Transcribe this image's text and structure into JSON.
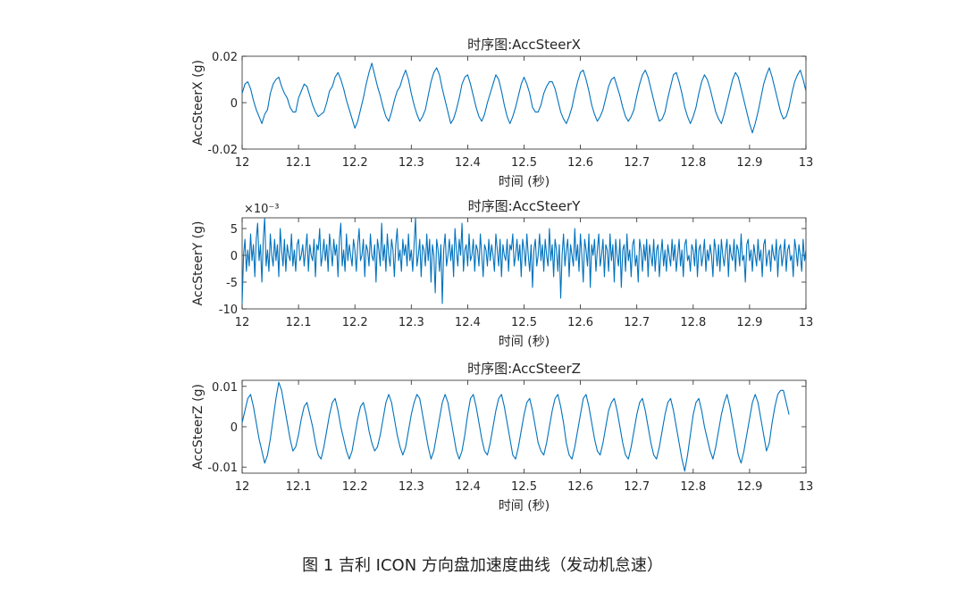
{
  "figure_caption": "图 1  吉利 ICON 方向盘加速度曲线（发动机怠速）",
  "chart_data": [
    {
      "type": "line",
      "title": "时序图:AccSteerX",
      "xlabel": "时间 (秒)",
      "ylabel": "AccSteerX (g)",
      "xlim": [
        12,
        13
      ],
      "ylim": [
        -0.02,
        0.02
      ],
      "x_ticks": [
        12,
        12.1,
        12.2,
        12.3,
        12.4,
        12.5,
        12.6,
        12.7,
        12.8,
        12.9,
        13
      ],
      "x_tick_labels": [
        "12",
        "12.1",
        "12.2",
        "12.3",
        "12.4",
        "12.5",
        "12.6",
        "12.7",
        "12.8",
        "12.9",
        "13"
      ],
      "y_ticks": [
        -0.02,
        0,
        0.02
      ],
      "y_tick_labels": [
        "-0.02",
        "0",
        "0.02"
      ],
      "exponent_label": "",
      "color": "#0072BD",
      "x_step": 0.005,
      "x_start": 12,
      "series": [
        {
          "values": [
            0.004,
            0.008,
            0.009,
            0.006,
            0.001,
            -0.003,
            -0.006,
            -0.009,
            -0.005,
            -0.003,
            0.004,
            0.008,
            0.01,
            0.011,
            0.007,
            0.004,
            0.002,
            -0.002,
            -0.004,
            -0.004,
            0.002,
            0.005,
            0.008,
            0.007,
            0.003,
            -0.001,
            -0.004,
            -0.006,
            -0.005,
            -0.004,
            0.0,
            0.005,
            0.007,
            0.011,
            0.013,
            0.01,
            0.006,
            0.001,
            -0.003,
            -0.007,
            -0.011,
            -0.008,
            -0.003,
            0.002,
            0.008,
            0.013,
            0.017,
            0.012,
            0.007,
            0.003,
            -0.002,
            -0.006,
            -0.008,
            -0.004,
            0.001,
            0.005,
            0.007,
            0.011,
            0.014,
            0.01,
            0.004,
            -0.001,
            -0.005,
            -0.008,
            -0.006,
            -0.003,
            0.003,
            0.009,
            0.013,
            0.015,
            0.012,
            0.006,
            0.001,
            -0.004,
            -0.009,
            -0.007,
            -0.003,
            0.002,
            0.008,
            0.011,
            0.012,
            0.008,
            0.003,
            -0.002,
            -0.006,
            -0.008,
            -0.005,
            0.0,
            0.004,
            0.008,
            0.012,
            0.01,
            0.005,
            -0.001,
            -0.006,
            -0.009,
            -0.006,
            -0.002,
            0.003,
            0.008,
            0.011,
            0.008,
            0.004,
            -0.002,
            -0.004,
            -0.004,
            -0.001,
            0.004,
            0.007,
            0.009,
            0.009,
            0.006,
            0.001,
            -0.004,
            -0.007,
            -0.009,
            -0.006,
            -0.002,
            0.004,
            0.009,
            0.013,
            0.014,
            0.01,
            0.005,
            -0.001,
            -0.005,
            -0.008,
            -0.006,
            -0.003,
            0.002,
            0.007,
            0.01,
            0.011,
            0.007,
            0.003,
            -0.002,
            -0.006,
            -0.008,
            -0.006,
            -0.003,
            0.003,
            0.008,
            0.012,
            0.014,
            0.011,
            0.006,
            0.001,
            -0.004,
            -0.008,
            -0.007,
            -0.004,
            0.002,
            0.007,
            0.012,
            0.013,
            0.009,
            0.004,
            -0.002,
            -0.006,
            -0.009,
            -0.006,
            -0.002,
            0.004,
            0.009,
            0.012,
            0.01,
            0.006,
            0.001,
            -0.004,
            -0.007,
            -0.009,
            -0.005,
            0.0,
            0.005,
            0.01,
            0.013,
            0.011,
            0.006,
            0.001,
            -0.004,
            -0.009,
            -0.013,
            -0.009,
            -0.004,
            0.002,
            0.008,
            0.012,
            0.015,
            0.011,
            0.006,
            0.001,
            -0.004,
            -0.007,
            -0.006,
            -0.002,
            0.004,
            0.009,
            0.012,
            0.014,
            0.01,
            0.005,
            -0.001,
            -0.005,
            -0.008
          ]
        }
      ]
    },
    {
      "type": "line",
      "title": "时序图:AccSteerY",
      "xlabel": "时间 (秒)",
      "ylabel": "AccSteerY (g)",
      "xlim": [
        12,
        13
      ],
      "ylim": [
        -0.01,
        0.007
      ],
      "x_ticks": [
        12,
        12.1,
        12.2,
        12.3,
        12.4,
        12.5,
        12.6,
        12.7,
        12.8,
        12.9,
        13
      ],
      "x_tick_labels": [
        "12",
        "12.1",
        "12.2",
        "12.3",
        "12.4",
        "12.5",
        "12.6",
        "12.7",
        "12.8",
        "12.9",
        "13"
      ],
      "y_ticks": [
        -0.01,
        -0.005,
        0,
        0.005
      ],
      "y_tick_labels": [
        "-10",
        "-5",
        "0",
        "5"
      ],
      "exponent_label": "×10⁻³",
      "color": "#0072BD",
      "x_step": 0.0025,
      "x_start": 12,
      "series": [
        {
          "values": [
            -0.009,
            0.0,
            0.003,
            -0.003,
            0.001,
            -0.002,
            0.004,
            -0.001,
            0.002,
            -0.004,
            0.003,
            0.006,
            -0.001,
            0.002,
            -0.005,
            0.003,
            0.007,
            -0.002,
            0.001,
            -0.003,
            0.004,
            0.0,
            -0.002,
            0.003,
            -0.001,
            0.002,
            -0.004,
            0.005,
            0.001,
            -0.002,
            0.003,
            -0.003,
            0.002,
            0.0,
            -0.001,
            0.004,
            -0.002,
            0.001,
            -0.003,
            0.002,
            0.003,
            -0.001,
            0.0,
            0.002,
            -0.002,
            0.001,
            0.004,
            -0.003,
            0.002,
            0.0,
            -0.001,
            0.003,
            -0.004,
            0.002,
            0.001,
            0.005,
            -0.002,
            0.0,
            0.003,
            -0.001,
            0.002,
            -0.003,
            0.004,
            0.001,
            -0.002,
            0.003,
            0.0,
            0.002,
            -0.004,
            0.003,
            0.006,
            -0.002,
            0.001,
            -0.003,
            0.004,
            -0.001,
            0.002,
            0.0,
            -0.002,
            0.003,
            0.001,
            -0.003,
            0.002,
            0.005,
            -0.001,
            0.0,
            0.003,
            -0.004,
            0.002,
            0.001,
            -0.002,
            0.004,
            0.0,
            -0.001,
            0.002,
            -0.005,
            0.003,
            0.001,
            -0.002,
            0.006,
            -0.001,
            0.002,
            -0.003,
            0.004,
            0.0,
            -0.002,
            0.003,
            0.001,
            -0.004,
            0.002,
            0.005,
            -0.001,
            0.001,
            -0.003,
            0.003,
            0.0,
            0.002,
            -0.002,
            0.004,
            -0.001,
            0.001,
            -0.003,
            0.002,
            0.007,
            -0.002,
            0.0,
            0.003,
            -0.004,
            0.002,
            0.001,
            -0.002,
            0.004,
            -0.001,
            0.003,
            -0.005,
            0.002,
            0.0,
            -0.007,
            0.003,
            0.001,
            -0.003,
            0.002,
            -0.009,
            0.001,
            0.004,
            -0.002,
            0.0,
            0.003,
            -0.001,
            0.002,
            -0.004,
            0.005,
            0.001,
            -0.002,
            0.003,
            0.0,
            0.006,
            -0.003,
            0.001,
            0.002,
            -0.002,
            0.004,
            -0.001,
            0.0,
            0.003,
            -0.003,
            0.002,
            0.001,
            -0.002,
            0.004,
            0.0,
            -0.004,
            0.002,
            0.001,
            -0.002,
            0.003,
            -0.001,
            0.002,
            0.0,
            -0.003,
            0.004,
            0.001,
            -0.002,
            0.003,
            -0.004,
            0.002,
            0.0,
            -0.001,
            0.003,
            -0.003,
            0.002,
            0.001,
            0.004,
            -0.002,
            0.0,
            0.003,
            -0.001,
            0.002,
            -0.004,
            0.003,
            0.001,
            -0.002,
            0.004,
            0.0,
            -0.003,
            0.002,
            -0.006,
            0.001,
            0.003,
            -0.002,
            0.0,
            0.004,
            -0.001,
            0.002,
            -0.003,
            0.003,
            0.0,
            -0.002,
            0.005,
            -0.001,
            0.002,
            -0.004,
            0.003,
            0.001,
            -0.003,
            0.002,
            -0.008,
            0.0,
            0.004,
            -0.002,
            0.001,
            0.003,
            -0.004,
            0.002,
            0.0,
            -0.002,
            0.005,
            -0.001,
            0.002,
            -0.003,
            0.004,
            0.0,
            -0.005,
            0.003,
            0.001,
            -0.002,
            0.004,
            -0.006,
            0.002,
            0.0,
            0.003,
            -0.003,
            0.001,
            0.004,
            -0.002,
            0.0,
            0.003,
            -0.004,
            0.002,
            0.001,
            -0.003,
            0.004,
            -0.001,
            0.002,
            -0.005,
            0.003,
            0.0,
            -0.002,
            0.003,
            -0.006,
            0.001,
            0.002,
            -0.003,
            0.004,
            -0.001,
            0.001,
            -0.004,
            0.002,
            0.003,
            -0.002,
            0.0,
            -0.005,
            0.003,
            0.001,
            -0.003,
            0.002,
            -0.001,
            0.003,
            -0.004,
            0.002,
            0.0,
            -0.002,
            0.003,
            -0.003,
            0.001,
            0.002,
            -0.004,
            0.0,
            0.003,
            -0.002,
            0.001,
            -0.003,
            0.002,
            0.0,
            -0.002,
            0.003,
            -0.001,
            0.002,
            -0.003,
            0.0,
            0.003,
            -0.002,
            0.001,
            -0.004,
            0.002,
            0.003,
            -0.001,
            0.0,
            -0.003,
            0.002,
            0.001,
            -0.002,
            0.003,
            -0.004,
            0.001,
            0.002,
            -0.002,
            0.0,
            0.003,
            -0.003,
            0.001,
            -0.001,
            0.002,
            0.0,
            -0.004,
            0.003,
            0.001,
            -0.002,
            0.002,
            -0.003,
            0.003,
            0.0,
            -0.002,
            0.001,
            0.003,
            -0.004,
            0.002,
            0.0,
            -0.001,
            0.003,
            -0.003,
            0.002,
            0.001,
            -0.002,
            0.004,
            -0.001,
            0.0,
            -0.005,
            0.002,
            0.003,
            -0.001,
            0.001,
            -0.003,
            0.002,
            0.0,
            -0.002,
            0.003,
            -0.001,
            0.001,
            -0.004,
            0.002,
            0.003,
            -0.002,
            0.0,
            0.001,
            -0.003,
            0.002,
            0.0,
            -0.001,
            0.003,
            -0.004,
            0.001,
            0.002,
            -0.002,
            0.0,
            0.003,
            -0.003,
            0.001,
            0.002,
            -0.001,
            0.0,
            -0.004,
            0.003,
            0.001,
            -0.002,
            0.002,
            0.0,
            -0.003,
            0.003,
            -0.001,
            0.001,
            0.002,
            -0.004,
            0.0,
            0.002,
            -0.002,
            0.001,
            0.003,
            -0.003,
            0.0,
            0.002,
            -0.001
          ]
        }
      ]
    },
    {
      "type": "line",
      "title": "时序图:AccSteerZ",
      "xlabel": "时间 (秒)",
      "ylabel": "AccSteerZ (g)",
      "xlim": [
        12,
        13
      ],
      "ylim": [
        -0.0115,
        0.0115
      ],
      "x_ticks": [
        12,
        12.1,
        12.2,
        12.3,
        12.4,
        12.5,
        12.6,
        12.7,
        12.8,
        12.9,
        13
      ],
      "x_tick_labels": [
        "12",
        "12.1",
        "12.2",
        "12.3",
        "12.4",
        "12.5",
        "12.6",
        "12.7",
        "12.8",
        "12.9",
        "13"
      ],
      "y_ticks": [
        -0.01,
        0,
        0.01
      ],
      "y_tick_labels": [
        "-0.01",
        "0",
        "0.01"
      ],
      "exponent_label": "",
      "color": "#0072BD",
      "x_step": 0.005,
      "x_start": 12,
      "series": [
        {
          "values": [
            0.001,
            0.004,
            0.007,
            0.008,
            0.005,
            0.001,
            -0.003,
            -0.006,
            -0.009,
            -0.007,
            -0.003,
            0.002,
            0.007,
            0.011,
            0.009,
            0.005,
            0.001,
            -0.003,
            -0.006,
            -0.005,
            -0.002,
            0.002,
            0.005,
            0.006,
            0.003,
            0.0,
            -0.004,
            -0.007,
            -0.008,
            -0.005,
            -0.001,
            0.003,
            0.006,
            0.007,
            0.004,
            0.0,
            -0.003,
            -0.006,
            -0.008,
            -0.006,
            -0.002,
            0.002,
            0.005,
            0.006,
            0.003,
            -0.001,
            -0.004,
            -0.006,
            -0.005,
            -0.002,
            0.002,
            0.006,
            0.008,
            0.006,
            0.002,
            -0.002,
            -0.005,
            -0.007,
            -0.005,
            -0.001,
            0.003,
            0.006,
            0.008,
            0.007,
            0.003,
            -0.001,
            -0.005,
            -0.008,
            -0.006,
            -0.002,
            0.002,
            0.006,
            0.008,
            0.006,
            0.002,
            -0.002,
            -0.006,
            -0.008,
            -0.006,
            -0.002,
            0.003,
            0.007,
            0.008,
            0.005,
            0.001,
            -0.003,
            -0.006,
            -0.007,
            -0.004,
            0.0,
            0.004,
            0.007,
            0.008,
            0.005,
            0.001,
            -0.003,
            -0.007,
            -0.008,
            -0.005,
            -0.001,
            0.003,
            0.006,
            0.007,
            0.004,
            0.0,
            -0.004,
            -0.006,
            -0.007,
            -0.004,
            0.0,
            0.004,
            0.007,
            0.008,
            0.005,
            0.001,
            -0.004,
            -0.007,
            -0.008,
            -0.005,
            -0.001,
            0.003,
            0.007,
            0.008,
            0.005,
            0.001,
            -0.003,
            -0.006,
            -0.007,
            -0.004,
            0.0,
            0.004,
            0.006,
            0.007,
            0.004,
            0.0,
            -0.004,
            -0.007,
            -0.008,
            -0.005,
            -0.001,
            0.003,
            0.006,
            0.007,
            0.004,
            0.0,
            -0.004,
            -0.007,
            -0.008,
            -0.005,
            -0.001,
            0.003,
            0.006,
            0.007,
            0.004,
            0.0,
            -0.004,
            -0.008,
            -0.011,
            -0.007,
            -0.002,
            0.003,
            0.006,
            0.007,
            0.004,
            0.0,
            -0.003,
            -0.006,
            -0.008,
            -0.005,
            -0.001,
            0.003,
            0.006,
            0.008,
            0.005,
            0.001,
            -0.003,
            -0.007,
            -0.009,
            -0.006,
            -0.002,
            0.002,
            0.006,
            0.008,
            0.006,
            0.002,
            -0.002,
            -0.006,
            -0.004,
            0.001,
            0.005,
            0.008,
            0.009,
            0.009,
            0.006,
            0.003
          ]
        }
      ]
    }
  ]
}
